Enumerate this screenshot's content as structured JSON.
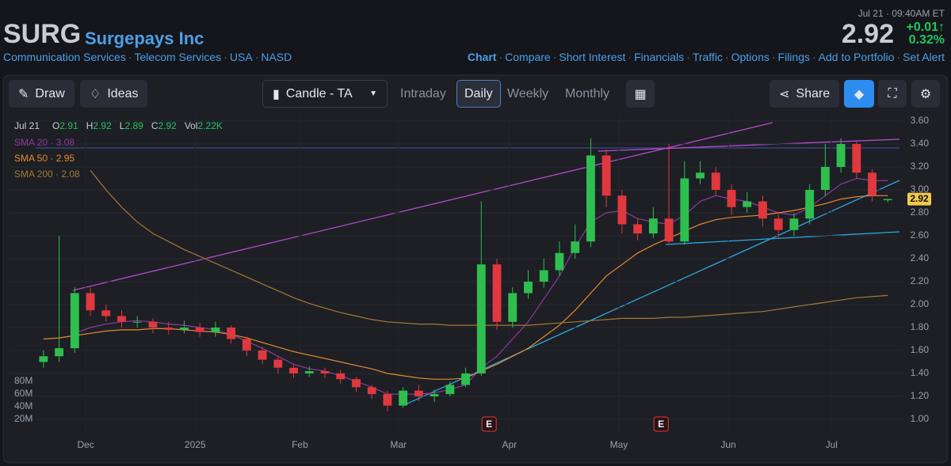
{
  "header": {
    "ticker": "SURG",
    "company": "Surgepays Inc",
    "breadcrumbs": [
      "Communication Services",
      "Telecom Services",
      "USA",
      "NASD"
    ],
    "timestamp": "Jul 21 · 09:40AM ET",
    "price": "2.92",
    "change": "+0.01↑",
    "change_pct": "0.32%"
  },
  "nav": [
    "Chart",
    "Compare",
    "Short Interest",
    "Financials",
    "Traffic",
    "Options",
    "Filings",
    "Add to Portfolio",
    "Set Alert"
  ],
  "toolbar": {
    "draw": "Draw",
    "ideas": "Ideas",
    "chart_type": "Candle - TA",
    "periods": [
      "Intraday",
      "Daily",
      "Weekly",
      "Monthly"
    ],
    "active_period": "Daily",
    "share": "Share"
  },
  "ohlc_legend": {
    "date": "Jul 21",
    "items": [
      {
        "label": "O",
        "value": "2.91"
      },
      {
        "label": "H",
        "value": "2.92"
      },
      {
        "label": "L",
        "value": "2.89"
      },
      {
        "label": "C",
        "value": "2.92"
      },
      {
        "label": "Vol",
        "value": "2.22K"
      }
    ]
  },
  "chart_data": {
    "type": "candlestick",
    "up_color": "#2fbf4f",
    "down_color": "#e0383e",
    "open": [
      1.5,
      1.55,
      1.62,
      2.1,
      1.95,
      1.9,
      1.85,
      1.85,
      1.8,
      1.78,
      1.8,
      1.76,
      1.8,
      1.7,
      1.6,
      1.52,
      1.45,
      1.4,
      1.42,
      1.4,
      1.35,
      1.28,
      1.22,
      1.12,
      1.25,
      1.2,
      1.22,
      1.3,
      1.4,
      2.35,
      1.85,
      2.1,
      2.2,
      2.3,
      2.45,
      2.55,
      3.3,
      2.95,
      2.7,
      2.62,
      2.75,
      2.55,
      3.1,
      3.15,
      3.0,
      2.85,
      2.9,
      2.75,
      2.65,
      2.75,
      3.0,
      3.2,
      3.4,
      3.15,
      2.91
    ],
    "high": [
      1.6,
      2.6,
      2.15,
      2.15,
      2.0,
      1.95,
      1.9,
      1.88,
      1.85,
      1.86,
      1.84,
      1.85,
      1.82,
      1.72,
      1.63,
      1.55,
      1.48,
      1.46,
      1.45,
      1.43,
      1.37,
      1.3,
      1.25,
      1.28,
      1.3,
      1.26,
      1.33,
      1.45,
      2.9,
      2.4,
      2.15,
      2.3,
      2.4,
      2.55,
      2.7,
      3.45,
      3.35,
      3.0,
      2.75,
      2.85,
      3.4,
      3.25,
      3.25,
      3.2,
      3.05,
      2.98,
      2.95,
      2.8,
      2.8,
      3.05,
      3.4,
      3.45,
      3.42,
      3.18,
      2.92
    ],
    "low": [
      1.45,
      1.5,
      1.58,
      1.9,
      1.85,
      1.8,
      1.8,
      1.75,
      1.74,
      1.75,
      1.72,
      1.72,
      1.66,
      1.55,
      1.48,
      1.4,
      1.36,
      1.37,
      1.36,
      1.31,
      1.24,
      1.18,
      1.07,
      1.1,
      1.16,
      1.15,
      1.2,
      1.28,
      1.38,
      1.78,
      1.8,
      2.05,
      2.15,
      2.25,
      2.4,
      2.5,
      2.85,
      2.62,
      2.56,
      2.58,
      2.52,
      2.52,
      3.05,
      2.95,
      2.78,
      2.8,
      2.68,
      2.58,
      2.6,
      2.7,
      2.95,
      3.15,
      3.1,
      2.9,
      2.89
    ],
    "close": [
      1.55,
      1.62,
      2.1,
      1.95,
      1.9,
      1.85,
      1.85,
      1.8,
      1.78,
      1.8,
      1.76,
      1.8,
      1.7,
      1.6,
      1.52,
      1.45,
      1.4,
      1.42,
      1.4,
      1.35,
      1.28,
      1.22,
      1.12,
      1.25,
      1.2,
      1.22,
      1.3,
      1.4,
      2.35,
      1.85,
      2.1,
      2.2,
      2.3,
      2.45,
      2.55,
      3.3,
      2.95,
      2.7,
      2.62,
      2.75,
      2.55,
      3.1,
      3.15,
      3.0,
      2.85,
      2.9,
      2.75,
      2.65,
      2.75,
      3.0,
      3.2,
      3.4,
      3.15,
      2.95,
      2.92
    ],
    "series": [
      {
        "name": "SMA 20",
        "label": "SMA 20 · 3.08",
        "color": "#8e3a9c",
        "values": [
          null,
          null,
          1.75,
          1.8,
          1.83,
          1.85,
          1.86,
          1.85,
          1.83,
          1.82,
          1.8,
          1.78,
          1.74,
          1.68,
          1.62,
          1.55,
          1.48,
          1.44,
          1.42,
          1.38,
          1.33,
          1.28,
          1.22,
          1.22,
          1.22,
          1.23,
          1.26,
          1.3,
          1.45,
          1.55,
          1.7,
          1.85,
          2.05,
          2.25,
          2.5,
          2.72,
          2.8,
          2.82,
          2.75,
          2.72,
          2.7,
          2.78,
          2.9,
          2.95,
          2.92,
          2.9,
          2.85,
          2.8,
          2.78,
          2.85,
          2.95,
          3.05,
          3.1,
          3.08,
          3.08
        ]
      },
      {
        "name": "SMA 50",
        "label": "SMA 50 · 2.95",
        "color": "#e8892f",
        "values": [
          1.7,
          1.71,
          1.73,
          1.75,
          1.77,
          1.78,
          1.78,
          1.79,
          1.79,
          1.78,
          1.77,
          1.76,
          1.74,
          1.71,
          1.67,
          1.63,
          1.59,
          1.56,
          1.53,
          1.5,
          1.47,
          1.44,
          1.4,
          1.38,
          1.36,
          1.35,
          1.35,
          1.36,
          1.42,
          1.48,
          1.55,
          1.62,
          1.72,
          1.82,
          1.95,
          2.1,
          2.25,
          2.35,
          2.45,
          2.52,
          2.58,
          2.64,
          2.7,
          2.74,
          2.76,
          2.77,
          2.78,
          2.8,
          2.82,
          2.85,
          2.88,
          2.92,
          2.94,
          2.95,
          2.95
        ]
      },
      {
        "name": "SMA 200",
        "label": "SMA 200 · 2.08",
        "color": "#a37a35",
        "values": [
          null,
          null,
          null,
          3.17,
          3.0,
          2.85,
          2.72,
          2.62,
          2.55,
          2.48,
          2.42,
          2.36,
          2.3,
          2.24,
          2.18,
          2.12,
          2.06,
          2.01,
          1.97,
          1.93,
          1.9,
          1.87,
          1.85,
          1.84,
          1.83,
          1.83,
          1.82,
          1.82,
          1.82,
          1.82,
          1.82,
          1.82,
          1.83,
          1.84,
          1.85,
          1.86,
          1.87,
          1.88,
          1.88,
          1.88,
          1.89,
          1.89,
          1.9,
          1.91,
          1.92,
          1.93,
          1.94,
          1.96,
          1.98,
          2.0,
          2.02,
          2.04,
          2.06,
          2.07,
          2.08
        ]
      }
    ],
    "xlim": [
      -0.5,
      55
    ],
    "xticks": [
      {
        "value": 2.7,
        "label": "Dec"
      },
      {
        "value": 9.7,
        "label": "2025"
      },
      {
        "value": 16.4,
        "label": "Feb"
      },
      {
        "value": 22.7,
        "label": "Mar"
      },
      {
        "value": 29.8,
        "label": "Apr"
      },
      {
        "value": 36.8,
        "label": "May"
      },
      {
        "value": 43.8,
        "label": "Jun"
      },
      {
        "value": 50.4,
        "label": "Jul"
      }
    ],
    "ylim": [
      1,
      3.6
    ],
    "yticks": [
      {
        "value": 1,
        "label": "1.00"
      },
      {
        "value": 1.2,
        "label": "1.20"
      },
      {
        "value": 1.4,
        "label": "1.40"
      },
      {
        "value": 1.6,
        "label": "1.60"
      },
      {
        "value": 1.8,
        "label": "1.80"
      },
      {
        "value": 2,
        "label": "2.00"
      },
      {
        "value": 2.2,
        "label": "2.20"
      },
      {
        "value": 2.4,
        "label": "2.40"
      },
      {
        "value": 2.6,
        "label": "2.60"
      },
      {
        "value": 2.8,
        "label": "2.80"
      },
      {
        "value": 3,
        "label": "3.00"
      },
      {
        "value": 3.2,
        "label": "3.20"
      },
      {
        "value": 3.4,
        "label": "3.40"
      },
      {
        "value": 3.6,
        "label": "3.60"
      }
    ],
    "volume_ticks": [
      {
        "value": 80000000,
        "label": "80M"
      },
      {
        "value": 60000000,
        "label": "60M"
      },
      {
        "value": 40000000,
        "label": "40M"
      },
      {
        "value": 20000000,
        "label": "20M"
      }
    ],
    "last_price": {
      "value": 2.92,
      "label": "2.92"
    },
    "earnings_markers": [
      "E",
      "E"
    ]
  }
}
